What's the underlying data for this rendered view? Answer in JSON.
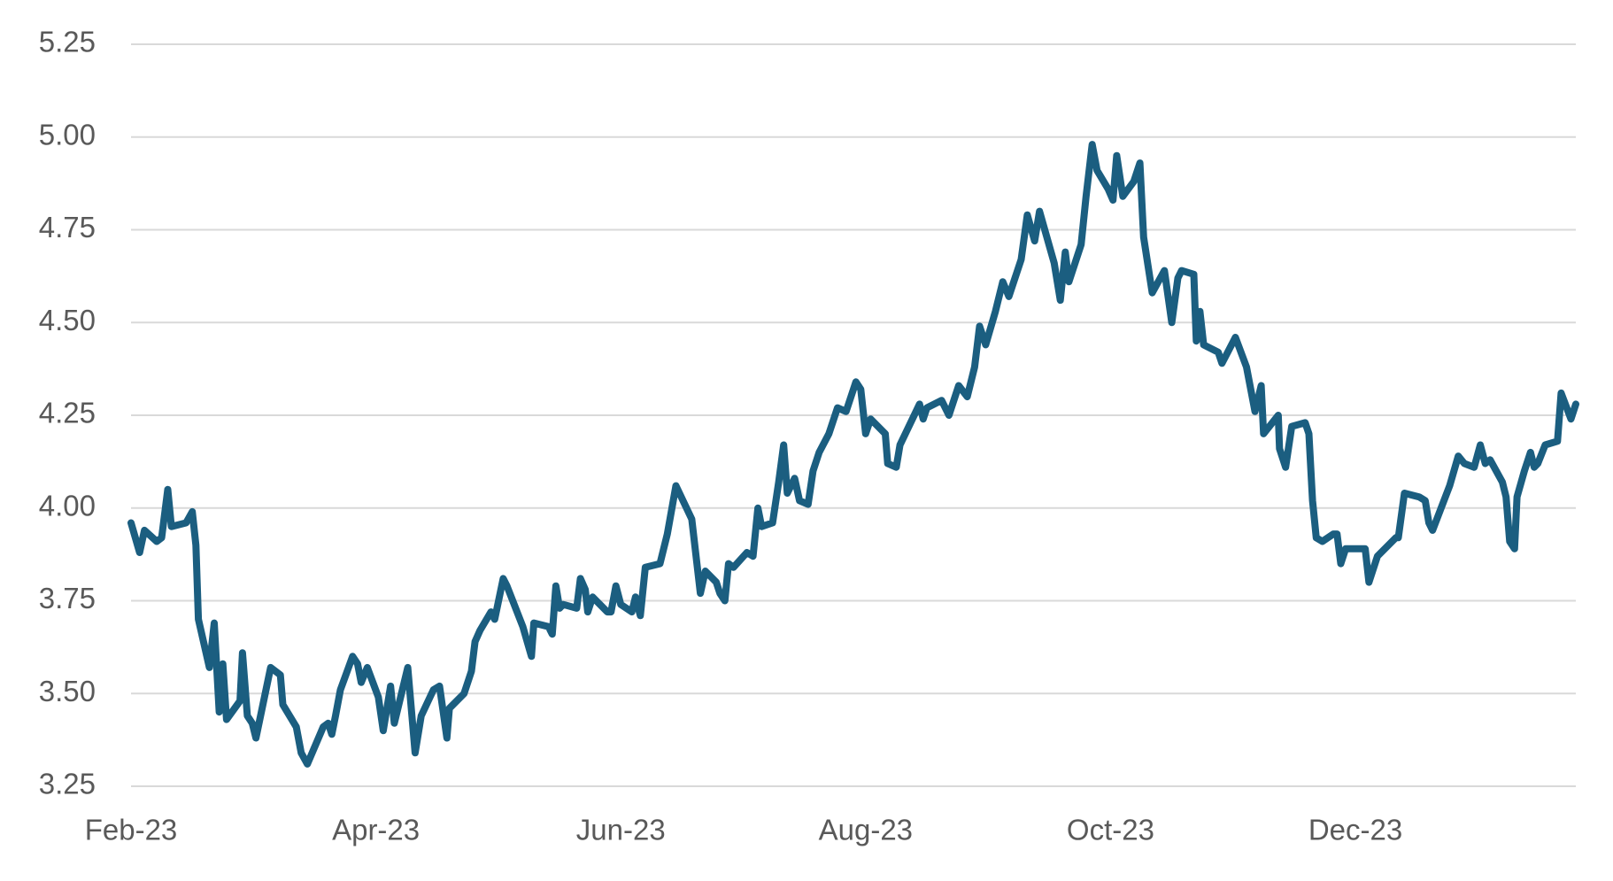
{
  "chart_data": {
    "type": "line",
    "x": [
      0,
      0.07,
      0.11,
      0.21,
      0.25,
      0.3,
      0.33,
      0.45,
      0.5,
      0.53,
      0.55,
      0.64,
      0.68,
      0.72,
      0.75,
      0.78,
      0.89,
      0.91,
      0.95,
      0.99,
      1.02,
      1.14,
      1.22,
      1.24,
      1.35,
      1.39,
      1.44,
      1.57,
      1.61,
      1.64,
      1.67,
      1.71,
      1.81,
      1.85,
      1.88,
      1.93,
      2.02,
      2.06,
      2.12,
      2.15,
      2.26,
      2.32,
      2.37,
      2.47,
      2.52,
      2.58,
      2.6,
      2.72,
      2.78,
      2.81,
      2.85,
      2.94,
      2.97,
      3.04,
      3.07,
      3.2,
      3.27,
      3.29,
      3.41,
      3.44,
      3.47,
      3.5,
      3.53,
      3.64,
      3.67,
      3.71,
      3.73,
      3.77,
      3.89,
      3.92,
      3.96,
      4.0,
      4.09,
      4.12,
      4.16,
      4.2,
      4.32,
      4.38,
      4.45,
      4.58,
      4.65,
      4.69,
      4.78,
      4.81,
      4.85,
      4.88,
      4.92,
      5.03,
      5.08,
      5.12,
      5.15,
      5.24,
      5.29,
      5.33,
      5.36,
      5.42,
      5.46,
      5.53,
      5.57,
      5.62,
      5.7,
      5.77,
      5.84,
      5.92,
      5.96,
      6.0,
      6.04,
      6.16,
      6.18,
      6.25,
      6.28,
      6.44,
      6.47,
      6.5,
      6.62,
      6.68,
      6.76,
      6.83,
      6.89,
      6.93,
      6.98,
      7.06,
      7.12,
      7.17,
      7.27,
      7.32,
      7.38,
      7.42,
      7.54,
      7.59,
      7.63,
      7.66,
      7.76,
      7.8,
      7.85,
      7.89,
      7.98,
      8.02,
      8.05,
      8.1,
      8.19,
      8.24,
      8.27,
      8.34,
      8.44,
      8.5,
      8.55,
      8.58,
      8.68,
      8.7,
      8.73,
      8.76,
      8.88,
      8.91,
      9.02,
      9.11,
      9.18,
      9.23,
      9.25,
      9.37,
      9.38,
      9.43,
      9.48,
      9.59,
      9.62,
      9.65,
      9.68,
      9.73,
      9.82,
      9.85,
      9.88,
      9.92,
      10.08,
      10.11,
      10.18,
      10.33,
      10.35,
      10.4,
      10.52,
      10.57,
      10.6,
      10.63,
      10.77,
      10.84,
      10.89,
      10.97,
      11.02,
      11.06,
      11.1,
      11.2,
      11.23,
      11.26,
      11.3,
      11.32,
      11.38,
      11.43,
      11.46,
      11.49,
      11.55,
      11.65,
      11.68,
      11.76,
      11.8
    ],
    "values": [
      3.96,
      3.88,
      3.94,
      3.91,
      3.92,
      4.05,
      3.95,
      3.96,
      3.99,
      3.9,
      3.7,
      3.57,
      3.69,
      3.45,
      3.58,
      3.43,
      3.48,
      3.61,
      3.44,
      3.42,
      3.38,
      3.57,
      3.55,
      3.47,
      3.41,
      3.34,
      3.31,
      3.41,
      3.42,
      3.39,
      3.44,
      3.51,
      3.6,
      3.58,
      3.53,
      3.57,
      3.49,
      3.4,
      3.52,
      3.42,
      3.57,
      3.34,
      3.44,
      3.51,
      3.52,
      3.38,
      3.46,
      3.5,
      3.56,
      3.64,
      3.67,
      3.72,
      3.7,
      3.81,
      3.79,
      3.68,
      3.6,
      3.69,
      3.68,
      3.66,
      3.79,
      3.73,
      3.74,
      3.73,
      3.81,
      3.78,
      3.72,
      3.76,
      3.72,
      3.72,
      3.79,
      3.74,
      3.72,
      3.76,
      3.71,
      3.84,
      3.85,
      3.93,
      4.06,
      3.97,
      3.77,
      3.83,
      3.8,
      3.77,
      3.75,
      3.85,
      3.84,
      3.88,
      3.87,
      4.0,
      3.95,
      3.96,
      4.07,
      4.17,
      4.04,
      4.08,
      4.02,
      4.01,
      4.1,
      4.15,
      4.2,
      4.27,
      4.26,
      4.34,
      4.32,
      4.2,
      4.24,
      4.2,
      4.12,
      4.11,
      4.17,
      4.28,
      4.24,
      4.27,
      4.29,
      4.25,
      4.33,
      4.3,
      4.38,
      4.49,
      4.44,
      4.53,
      4.61,
      4.57,
      4.67,
      4.79,
      4.72,
      4.8,
      4.66,
      4.56,
      4.69,
      4.61,
      4.71,
      4.84,
      4.98,
      4.91,
      4.86,
      4.83,
      4.95,
      4.84,
      4.88,
      4.93,
      4.73,
      4.58,
      4.64,
      4.5,
      4.62,
      4.64,
      4.63,
      4.45,
      4.53,
      4.44,
      4.42,
      4.39,
      4.46,
      4.38,
      4.26,
      4.33,
      4.2,
      4.25,
      4.16,
      4.11,
      4.22,
      4.23,
      4.2,
      4.02,
      3.92,
      3.91,
      3.93,
      3.93,
      3.85,
      3.89,
      3.89,
      3.8,
      3.87,
      3.92,
      3.92,
      4.04,
      4.03,
      4.02,
      3.96,
      3.94,
      4.06,
      4.14,
      4.12,
      4.11,
      4.17,
      4.12,
      4.13,
      4.07,
      4.03,
      3.91,
      3.89,
      4.03,
      4.1,
      4.15,
      4.11,
      4.12,
      4.17,
      4.18,
      4.31,
      4.24,
      4.28
    ],
    "color": "#1b5e80",
    "xlim": [
      0,
      11.8
    ],
    "xticks": [
      {
        "value": 0,
        "label": "Feb-23"
      },
      {
        "value": 2,
        "label": "Apr-23"
      },
      {
        "value": 4,
        "label": "Jun-23"
      },
      {
        "value": 6,
        "label": "Aug-23"
      },
      {
        "value": 8,
        "label": "Oct-23"
      },
      {
        "value": 10,
        "label": "Dec-23"
      }
    ],
    "ylim": [
      3.25,
      5.25
    ],
    "yticks": [
      {
        "value": 3.25,
        "label": "3.25"
      },
      {
        "value": 3.5,
        "label": "3.50"
      },
      {
        "value": 3.75,
        "label": "3.75"
      },
      {
        "value": 4,
        "label": "4.00"
      },
      {
        "value": 4.25,
        "label": "4.25"
      },
      {
        "value": 4.5,
        "label": "4.50"
      },
      {
        "value": 4.75,
        "label": "4.75"
      },
      {
        "value": 5,
        "label": "5.00"
      },
      {
        "value": 5.25,
        "label": "5.25"
      }
    ],
    "grid": true
  }
}
